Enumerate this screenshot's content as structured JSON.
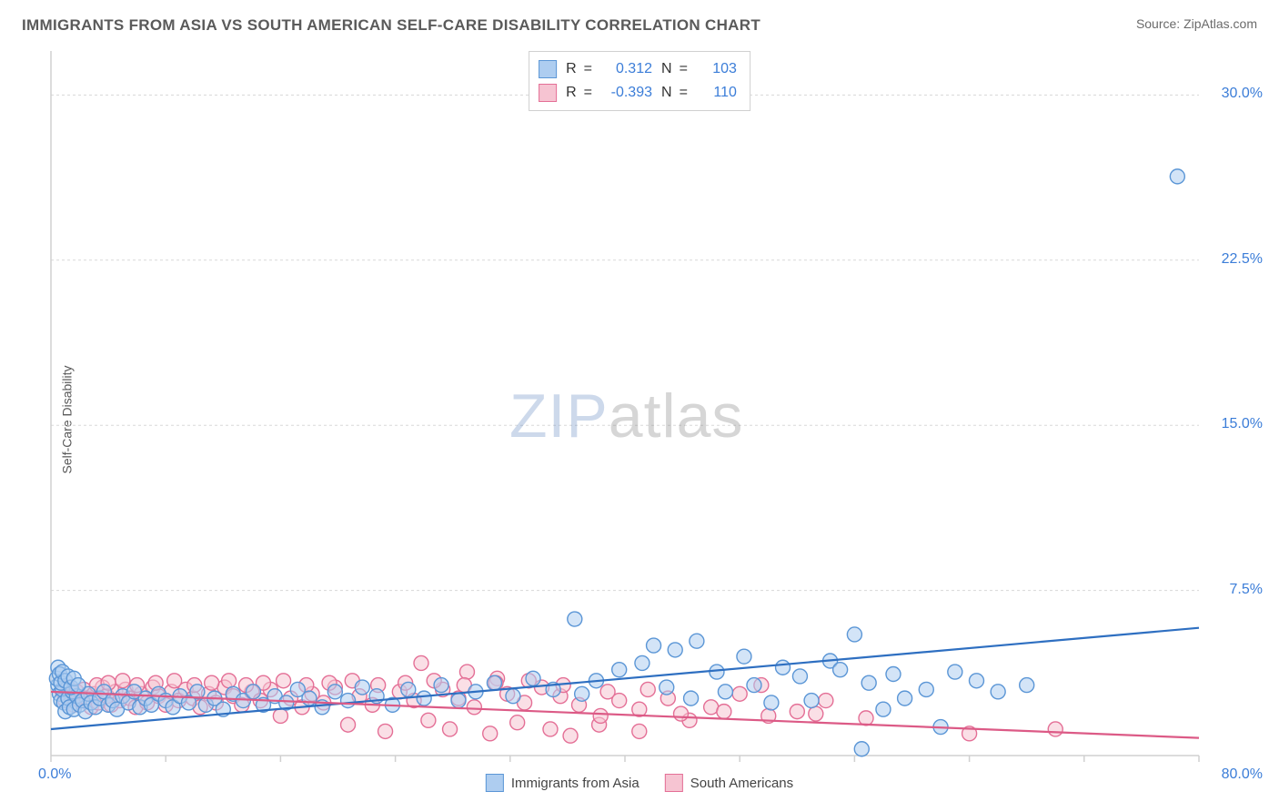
{
  "header": {
    "title": "IMMIGRANTS FROM ASIA VS SOUTH AMERICAN SELF-CARE DISABILITY CORRELATION CHART",
    "source_prefix": "Source: ",
    "source_name": "ZipAtlas.com"
  },
  "watermark": {
    "part1": "ZIP",
    "part2": "atlas"
  },
  "ylabel": "Self-Care Disability",
  "chart": {
    "type": "scatter",
    "xlim": [
      0,
      80
    ],
    "ylim": [
      0,
      32
    ],
    "x_ticks": [
      0,
      8,
      16,
      24,
      32,
      40,
      48,
      56,
      64,
      72,
      80
    ],
    "x_tick_labels": {
      "0": "0.0%",
      "80": "80.0%"
    },
    "y_ticks": [
      7.5,
      15.0,
      22.5,
      30.0
    ],
    "y_tick_labels": [
      "7.5%",
      "15.0%",
      "22.5%",
      "30.0%"
    ],
    "grid_color": "#d8d8d8",
    "axis_color": "#d0d0d0",
    "background_color": "#ffffff",
    "marker_radius": 8,
    "marker_stroke_width": 1.4,
    "trend_width": 2.2,
    "series": [
      {
        "name": "Immigrants from Asia",
        "fill": "#aecdf0",
        "stroke": "#5b96d6",
        "trend_color": "#2e6fc1",
        "R": 0.312,
        "N": 103,
        "trend": {
          "x1": 0,
          "y1": 1.2,
          "x2": 80,
          "y2": 5.8
        },
        "points": [
          [
            0.5,
            3.2
          ],
          [
            0.6,
            2.8
          ],
          [
            0.7,
            2.5
          ],
          [
            0.8,
            3.0
          ],
          [
            0.9,
            2.4
          ],
          [
            1.0,
            2.0
          ],
          [
            1.2,
            2.6
          ],
          [
            1.3,
            2.2
          ],
          [
            1.5,
            2.9
          ],
          [
            1.6,
            2.1
          ],
          [
            1.8,
            2.7
          ],
          [
            2.0,
            2.3
          ],
          [
            2.2,
            2.5
          ],
          [
            2.4,
            2.0
          ],
          [
            2.6,
            2.8
          ],
          [
            2.8,
            2.4
          ],
          [
            3.1,
            2.2
          ],
          [
            3.4,
            2.6
          ],
          [
            3.7,
            2.9
          ],
          [
            4.0,
            2.3
          ],
          [
            4.3,
            2.5
          ],
          [
            4.6,
            2.1
          ],
          [
            5.0,
            2.7
          ],
          [
            5.4,
            2.4
          ],
          [
            5.8,
            2.9
          ],
          [
            6.2,
            2.2
          ],
          [
            6.6,
            2.6
          ],
          [
            7.0,
            2.3
          ],
          [
            7.5,
            2.8
          ],
          [
            8.0,
            2.5
          ],
          [
            8.5,
            2.2
          ],
          [
            9.0,
            2.7
          ],
          [
            9.6,
            2.4
          ],
          [
            10.2,
            2.9
          ],
          [
            10.8,
            2.3
          ],
          [
            11.4,
            2.6
          ],
          [
            12.0,
            2.1
          ],
          [
            12.7,
            2.8
          ],
          [
            13.4,
            2.5
          ],
          [
            14.1,
            2.9
          ],
          [
            14.8,
            2.3
          ],
          [
            15.6,
            2.7
          ],
          [
            16.4,
            2.4
          ],
          [
            17.2,
            3.0
          ],
          [
            18.0,
            2.6
          ],
          [
            18.9,
            2.2
          ],
          [
            19.8,
            2.9
          ],
          [
            20.7,
            2.5
          ],
          [
            21.7,
            3.1
          ],
          [
            22.7,
            2.7
          ],
          [
            23.8,
            2.3
          ],
          [
            24.9,
            3.0
          ],
          [
            26.0,
            2.6
          ],
          [
            27.2,
            3.2
          ],
          [
            28.4,
            2.5
          ],
          [
            29.6,
            2.9
          ],
          [
            30.9,
            3.3
          ],
          [
            32.2,
            2.7
          ],
          [
            33.6,
            3.5
          ],
          [
            35.0,
            3.0
          ],
          [
            36.5,
            6.2
          ],
          [
            37.0,
            2.8
          ],
          [
            38.0,
            3.4
          ],
          [
            39.6,
            3.9
          ],
          [
            41.2,
            4.2
          ],
          [
            42.0,
            5.0
          ],
          [
            42.9,
            3.1
          ],
          [
            43.5,
            4.8
          ],
          [
            44.6,
            2.6
          ],
          [
            45.0,
            5.2
          ],
          [
            46.4,
            3.8
          ],
          [
            47.0,
            2.9
          ],
          [
            48.3,
            4.5
          ],
          [
            49.0,
            3.2
          ],
          [
            50.2,
            2.4
          ],
          [
            51.0,
            4.0
          ],
          [
            52.2,
            3.6
          ],
          [
            53.0,
            2.5
          ],
          [
            54.3,
            4.3
          ],
          [
            55.0,
            3.9
          ],
          [
            56.0,
            5.5
          ],
          [
            56.5,
            0.3
          ],
          [
            57.0,
            3.3
          ],
          [
            58.0,
            2.1
          ],
          [
            58.7,
            3.7
          ],
          [
            59.5,
            2.6
          ],
          [
            61.0,
            3.0
          ],
          [
            62.0,
            1.3
          ],
          [
            63.0,
            3.8
          ],
          [
            64.5,
            3.4
          ],
          [
            66.0,
            2.9
          ],
          [
            68.0,
            3.2
          ],
          [
            78.5,
            26.3
          ],
          [
            0.4,
            3.5
          ],
          [
            0.5,
            4.0
          ],
          [
            0.6,
            3.7
          ],
          [
            0.7,
            3.3
          ],
          [
            0.8,
            3.8
          ],
          [
            1.0,
            3.4
          ],
          [
            1.2,
            3.6
          ],
          [
            1.4,
            3.1
          ],
          [
            1.6,
            3.5
          ],
          [
            1.9,
            3.2
          ]
        ]
      },
      {
        "name": "South Americans",
        "fill": "#f6c4d2",
        "stroke": "#e46f96",
        "trend_color": "#dc5a86",
        "R": -0.393,
        "N": 110,
        "trend": {
          "x1": 0,
          "y1": 2.9,
          "x2": 80,
          "y2": 0.8
        },
        "points": [
          [
            0.8,
            2.9
          ],
          [
            1.0,
            2.5
          ],
          [
            1.2,
            3.1
          ],
          [
            1.4,
            2.7
          ],
          [
            1.6,
            2.3
          ],
          [
            1.8,
            2.9
          ],
          [
            2.0,
            2.5
          ],
          [
            2.3,
            3.0
          ],
          [
            2.5,
            2.6
          ],
          [
            2.8,
            2.2
          ],
          [
            3.0,
            2.8
          ],
          [
            3.3,
            2.4
          ],
          [
            3.6,
            3.1
          ],
          [
            3.9,
            2.7
          ],
          [
            4.2,
            2.3
          ],
          [
            4.5,
            2.9
          ],
          [
            4.8,
            2.5
          ],
          [
            5.2,
            3.0
          ],
          [
            5.5,
            2.6
          ],
          [
            5.9,
            2.2
          ],
          [
            6.3,
            2.8
          ],
          [
            6.7,
            2.4
          ],
          [
            7.1,
            3.1
          ],
          [
            7.5,
            2.7
          ],
          [
            8.0,
            2.3
          ],
          [
            8.4,
            2.9
          ],
          [
            8.9,
            2.5
          ],
          [
            9.4,
            3.0
          ],
          [
            9.9,
            2.6
          ],
          [
            10.4,
            2.2
          ],
          [
            11.0,
            2.8
          ],
          [
            11.5,
            2.4
          ],
          [
            12.1,
            3.1
          ],
          [
            12.7,
            2.7
          ],
          [
            13.3,
            2.3
          ],
          [
            14.0,
            2.9
          ],
          [
            14.6,
            2.5
          ],
          [
            15.3,
            3.0
          ],
          [
            16.0,
            1.8
          ],
          [
            16.7,
            2.6
          ],
          [
            17.5,
            2.2
          ],
          [
            18.2,
            2.8
          ],
          [
            19.0,
            2.4
          ],
          [
            19.8,
            3.1
          ],
          [
            20.7,
            1.4
          ],
          [
            21.5,
            2.7
          ],
          [
            22.4,
            2.3
          ],
          [
            23.3,
            1.1
          ],
          [
            24.3,
            2.9
          ],
          [
            25.3,
            2.5
          ],
          [
            25.8,
            4.2
          ],
          [
            26.3,
            1.6
          ],
          [
            27.3,
            3.0
          ],
          [
            27.8,
            1.2
          ],
          [
            28.4,
            2.6
          ],
          [
            29.0,
            3.8
          ],
          [
            29.5,
            2.2
          ],
          [
            30.6,
            1.0
          ],
          [
            31.1,
            3.5
          ],
          [
            31.8,
            2.8
          ],
          [
            32.5,
            1.5
          ],
          [
            33.0,
            2.4
          ],
          [
            34.2,
            3.1
          ],
          [
            34.8,
            1.2
          ],
          [
            35.5,
            2.7
          ],
          [
            36.2,
            0.9
          ],
          [
            36.8,
            2.3
          ],
          [
            38.2,
            1.4
          ],
          [
            38.8,
            2.9
          ],
          [
            39.6,
            2.5
          ],
          [
            41.0,
            1.1
          ],
          [
            41.6,
            3.0
          ],
          [
            43.0,
            2.6
          ],
          [
            44.5,
            1.6
          ],
          [
            46.0,
            2.2
          ],
          [
            48.0,
            2.8
          ],
          [
            49.5,
            3.2
          ],
          [
            52.0,
            2.0
          ],
          [
            54.0,
            2.5
          ],
          [
            64.0,
            1.0
          ],
          [
            70.0,
            1.2
          ],
          [
            3.2,
            3.2
          ],
          [
            4.0,
            3.3
          ],
          [
            5.0,
            3.4
          ],
          [
            6.0,
            3.2
          ],
          [
            7.3,
            3.3
          ],
          [
            8.6,
            3.4
          ],
          [
            10.0,
            3.2
          ],
          [
            11.2,
            3.3
          ],
          [
            12.4,
            3.4
          ],
          [
            13.6,
            3.2
          ],
          [
            14.8,
            3.3
          ],
          [
            16.2,
            3.4
          ],
          [
            17.8,
            3.2
          ],
          [
            19.4,
            3.3
          ],
          [
            21.0,
            3.4
          ],
          [
            22.8,
            3.2
          ],
          [
            24.7,
            3.3
          ],
          [
            26.7,
            3.4
          ],
          [
            28.8,
            3.2
          ],
          [
            31.0,
            3.3
          ],
          [
            33.3,
            3.4
          ],
          [
            35.7,
            3.2
          ],
          [
            38.3,
            1.8
          ],
          [
            41.0,
            2.1
          ],
          [
            43.9,
            1.9
          ],
          [
            46.9,
            2.0
          ],
          [
            50.0,
            1.8
          ],
          [
            53.3,
            1.9
          ],
          [
            56.8,
            1.7
          ]
        ]
      }
    ]
  },
  "stats_legend": {
    "r_label": "R",
    "n_label": "N",
    "eq": "="
  },
  "series_legend": {
    "asia": "Immigrants from Asia",
    "sa": "South Americans"
  }
}
